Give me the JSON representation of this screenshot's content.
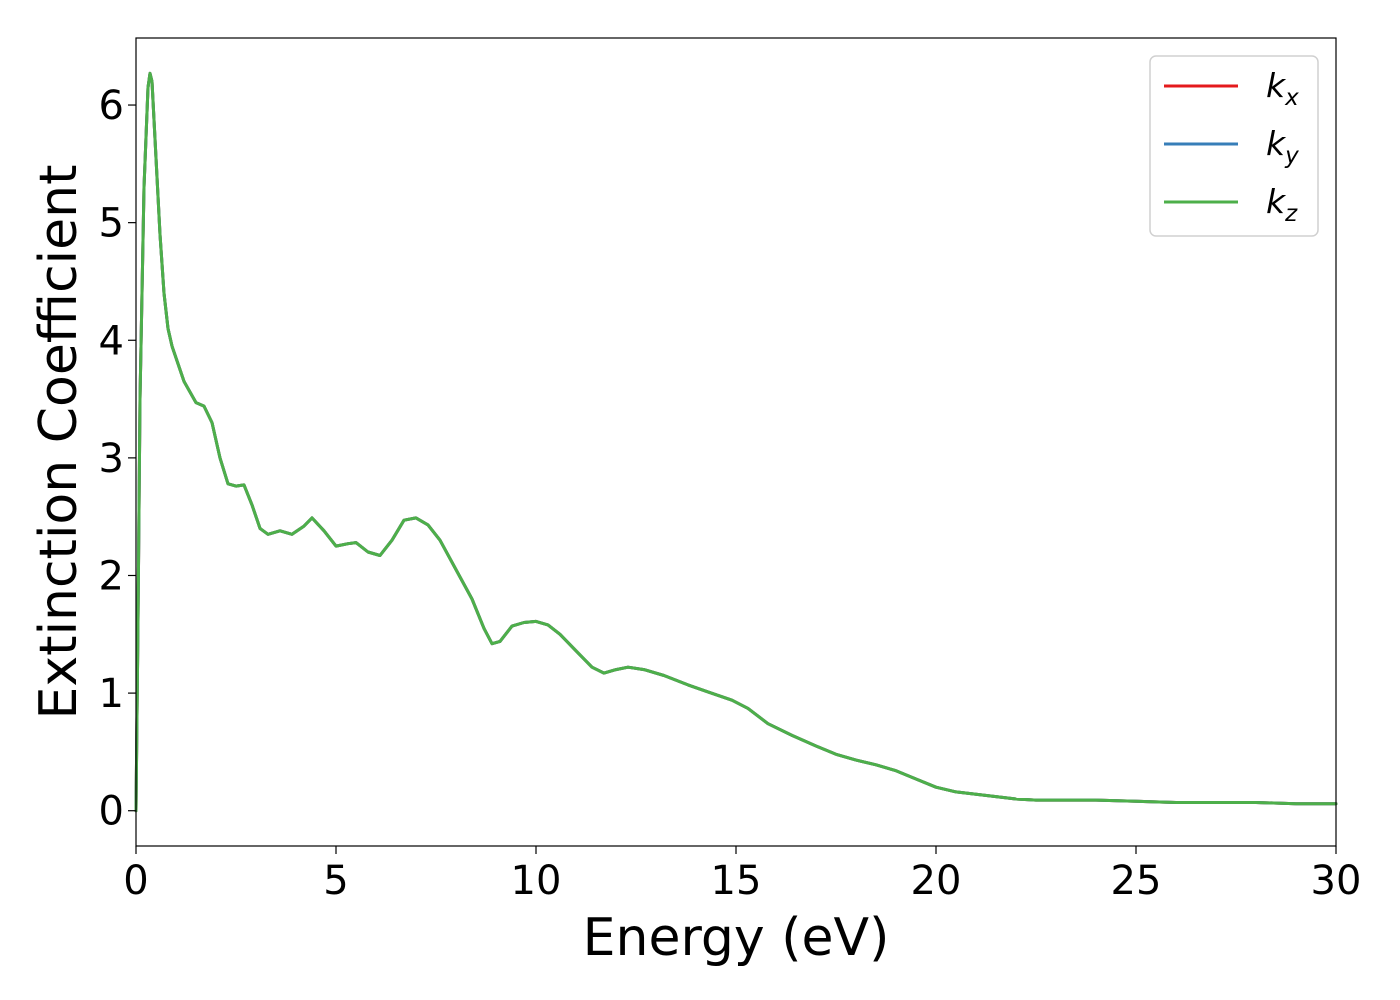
{
  "chart_data": {
    "type": "line",
    "title": "",
    "xlabel": "Energy (eV)",
    "ylabel": "Extinction Coefficient",
    "xlim": [
      0,
      30
    ],
    "ylim": [
      -0.3,
      6.57
    ],
    "xticks": [
      0,
      5,
      10,
      15,
      20,
      25,
      30
    ],
    "yticks": [
      0,
      1,
      2,
      3,
      4,
      5,
      6
    ],
    "grid": false,
    "legend_position": "top-right",
    "series": [
      {
        "name": "k",
        "sub": "x",
        "color": "#e41a1c"
      },
      {
        "name": "k",
        "sub": "y",
        "color": "#377eb8"
      },
      {
        "name": "k",
        "sub": "z",
        "color": "#4daf4a"
      }
    ],
    "x": [
      0,
      0.05,
      0.1,
      0.2,
      0.3,
      0.35,
      0.4,
      0.5,
      0.6,
      0.7,
      0.8,
      0.9,
      1.0,
      1.2,
      1.5,
      1.7,
      1.9,
      2.1,
      2.3,
      2.5,
      2.7,
      2.9,
      3.1,
      3.3,
      3.6,
      3.9,
      4.2,
      4.4,
      4.7,
      5.0,
      5.3,
      5.5,
      5.8,
      6.1,
      6.4,
      6.7,
      7.0,
      7.3,
      7.6,
      8.0,
      8.4,
      8.7,
      8.9,
      9.1,
      9.4,
      9.7,
      10.0,
      10.3,
      10.6,
      11.0,
      11.4,
      11.7,
      12.0,
      12.3,
      12.7,
      13.2,
      13.8,
      14.3,
      14.9,
      15.3,
      15.8,
      16.4,
      17.0,
      17.5,
      18.0,
      18.5,
      19.0,
      19.5,
      20.0,
      20.5,
      21.0,
      21.5,
      22.0,
      22.5,
      23.0,
      24.0,
      25.0,
      26.0,
      27.0,
      28.0,
      29.0,
      30.0
    ],
    "y": [
      0.0,
      1.6,
      3.5,
      5.3,
      6.15,
      6.27,
      6.2,
      5.55,
      4.9,
      4.4,
      4.1,
      3.95,
      3.85,
      3.65,
      3.47,
      3.44,
      3.3,
      3.0,
      2.78,
      2.76,
      2.77,
      2.6,
      2.4,
      2.35,
      2.38,
      2.35,
      2.42,
      2.49,
      2.38,
      2.25,
      2.27,
      2.28,
      2.2,
      2.17,
      2.3,
      2.47,
      2.49,
      2.43,
      2.3,
      2.05,
      1.8,
      1.55,
      1.42,
      1.44,
      1.57,
      1.6,
      1.61,
      1.58,
      1.5,
      1.36,
      1.22,
      1.17,
      1.2,
      1.22,
      1.2,
      1.15,
      1.07,
      1.01,
      0.94,
      0.87,
      0.74,
      0.64,
      0.55,
      0.48,
      0.43,
      0.39,
      0.34,
      0.27,
      0.2,
      0.16,
      0.14,
      0.12,
      0.1,
      0.09,
      0.09,
      0.09,
      0.08,
      0.07,
      0.07,
      0.07,
      0.06,
      0.06
    ]
  }
}
